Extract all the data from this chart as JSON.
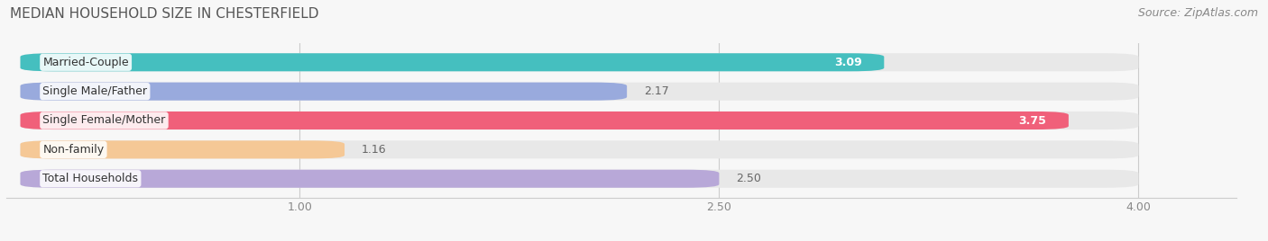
{
  "title": "MEDIAN HOUSEHOLD SIZE IN CHESTERFIELD",
  "source": "Source: ZipAtlas.com",
  "categories": [
    "Married-Couple",
    "Single Male/Father",
    "Single Female/Mother",
    "Non-family",
    "Total Households"
  ],
  "values": [
    3.09,
    2.17,
    3.75,
    1.16,
    2.5
  ],
  "bar_colors": [
    "#45BFBF",
    "#99AADD",
    "#F0607A",
    "#F5C896",
    "#B8A8D8"
  ],
  "bar_bg_color": "#E8E8E8",
  "xmin": 0.0,
  "xmax": 4.0,
  "xlim_left": -0.05,
  "xlim_right": 4.35,
  "xticks": [
    1.0,
    2.5,
    4.0
  ],
  "xtick_labels": [
    "1.00",
    "2.50",
    "4.00"
  ],
  "value_label_color_inside": "#FFFFFF",
  "value_label_color_outside": "#666666",
  "inside_threshold": 2.8,
  "title_fontsize": 11,
  "source_fontsize": 9,
  "cat_fontsize": 9,
  "value_fontsize": 9,
  "background_color": "#F7F7F7",
  "bar_area_bg": "#F0F0F0"
}
